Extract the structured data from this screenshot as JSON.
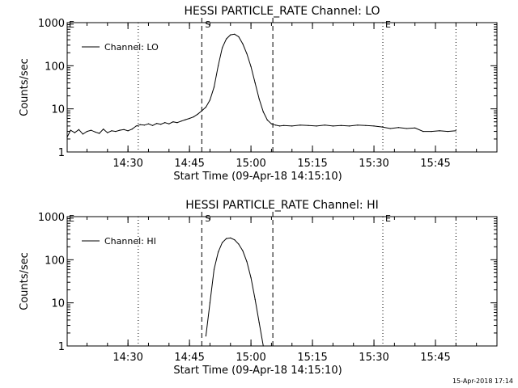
{
  "footer": {
    "timestamp": "15-Apr-2018 17:14"
  },
  "markers": {
    "start_label": "S",
    "end_label": "E"
  },
  "chart_data": [
    {
      "type": "line",
      "title": "HESSI PARTICLE_RATE Channel: LO",
      "xlabel": "Start Time (09-Apr-18 14:15:10)",
      "ylabel": "Counts/sec",
      "yscale": "log",
      "ylim": [
        1,
        1000
      ],
      "xlim": [
        "14:15:10",
        "16:00:00"
      ],
      "x_ticks": [
        "14:30",
        "14:45",
        "15:00",
        "15:15",
        "15:30",
        "15:45"
      ],
      "y_ticks": [
        "1",
        "10",
        "100",
        "1000"
      ],
      "grid": false,
      "legend_position": "top-left",
      "dashed_lines": [
        "14:48:00",
        "15:05:20"
      ],
      "dotted_lines": [
        "14:32:30",
        "15:32:10",
        "15:50:00"
      ],
      "series": [
        {
          "name": "Channel: LO",
          "x": [
            "14:15:10",
            "14:16",
            "14:17",
            "14:18",
            "14:19",
            "14:20",
            "14:21",
            "14:22",
            "14:23",
            "14:24",
            "14:25",
            "14:26",
            "14:27",
            "14:28",
            "14:29",
            "14:30",
            "14:31",
            "14:32",
            "14:33",
            "14:34",
            "14:35",
            "14:36",
            "14:37",
            "14:38",
            "14:39",
            "14:40",
            "14:41",
            "14:42",
            "14:43",
            "14:44",
            "14:45",
            "14:46",
            "14:47",
            "14:48",
            "14:49",
            "14:50",
            "14:51",
            "14:52",
            "14:53",
            "14:54",
            "14:55",
            "14:56",
            "14:57",
            "14:58",
            "14:59",
            "15:00",
            "15:01",
            "15:02",
            "15:03",
            "15:04",
            "15:05",
            "15:06",
            "15:07",
            "15:08",
            "15:10",
            "15:12",
            "15:14",
            "15:16",
            "15:18",
            "15:20",
            "15:22",
            "15:24",
            "15:26",
            "15:28",
            "15:30",
            "15:32",
            "15:34",
            "15:36",
            "15:38",
            "15:40",
            "15:42",
            "15:44",
            "15:46",
            "15:48",
            "15:50"
          ],
          "values": [
            2.2,
            3.2,
            2.8,
            3.3,
            2.6,
            3.0,
            3.2,
            2.9,
            2.7,
            3.4,
            2.8,
            3.1,
            3.0,
            3.2,
            3.3,
            3.1,
            3.4,
            4.0,
            4.3,
            4.2,
            4.5,
            4.1,
            4.6,
            4.4,
            4.8,
            4.5,
            5.0,
            4.8,
            5.2,
            5.6,
            6.0,
            6.5,
            7.5,
            9.0,
            11,
            16,
            32,
            100,
            260,
            420,
            520,
            540,
            470,
            320,
            190,
            95,
            40,
            17,
            8.5,
            5.5,
            4.5,
            4.2,
            4.0,
            4.1,
            4.0,
            4.2,
            4.1,
            4.0,
            4.2,
            4.0,
            4.1,
            4.0,
            4.2,
            4.1,
            4.0,
            3.8,
            3.5,
            3.7,
            3.5,
            3.6,
            3.0,
            3.0,
            3.1,
            3.0,
            3.1
          ]
        }
      ]
    },
    {
      "type": "line",
      "title": "HESSI PARTICLE_RATE Channel: HI",
      "xlabel": "Start Time (09-Apr-18 14:15:10)",
      "ylabel": "Counts/sec",
      "yscale": "log",
      "ylim": [
        1,
        1000
      ],
      "xlim": [
        "14:15:10",
        "16:00:00"
      ],
      "x_ticks": [
        "14:30",
        "14:45",
        "15:00",
        "15:15",
        "15:30",
        "15:45"
      ],
      "y_ticks": [
        "1",
        "10",
        "100",
        "1000"
      ],
      "grid": false,
      "legend_position": "top-left",
      "dashed_lines": [
        "14:48:00",
        "15:05:20"
      ],
      "dotted_lines": [
        "14:32:30",
        "15:32:10",
        "15:50:00"
      ],
      "series": [
        {
          "name": "Channel: HI",
          "x": [
            "14:49",
            "14:50",
            "14:51",
            "14:52",
            "14:53",
            "14:54",
            "14:55",
            "14:56",
            "14:57",
            "14:58",
            "14:59",
            "15:00",
            "15:01",
            "15:02",
            "15:03"
          ],
          "values": [
            1.7,
            10,
            60,
            150,
            250,
            310,
            320,
            290,
            230,
            160,
            90,
            38,
            12,
            3.5,
            1.0
          ]
        }
      ]
    }
  ]
}
